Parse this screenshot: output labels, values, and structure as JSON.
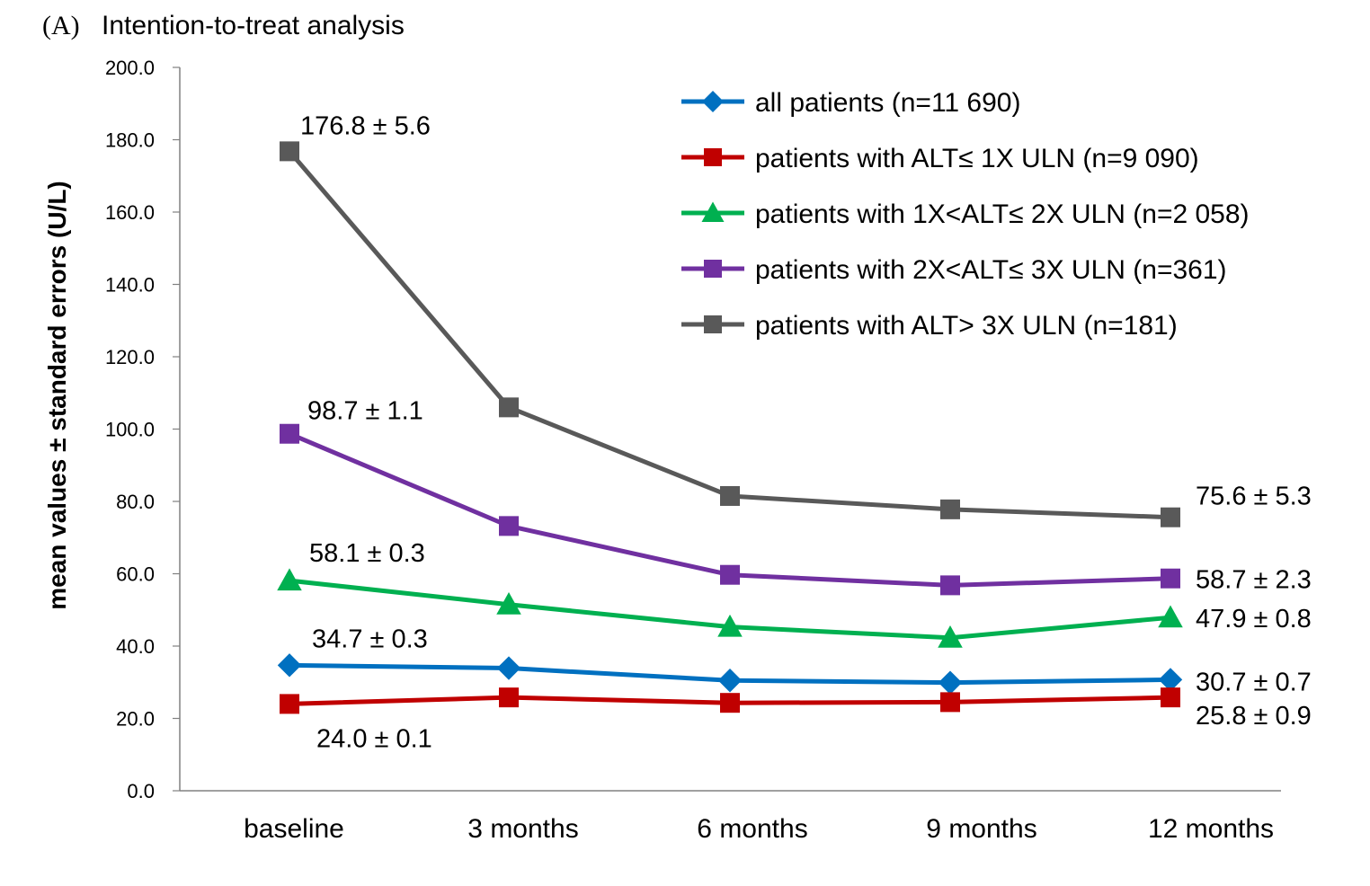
{
  "panel_label": "(A)",
  "chart_data": {
    "type": "line",
    "title": "Intention-to-treat analysis",
    "xlabel": "",
    "ylabel": "mean values ± standard errors (U/L)",
    "categories": [
      "baseline",
      "3 months",
      "6 months",
      "9 months",
      "12 months"
    ],
    "ylim": [
      0,
      200
    ],
    "yticks": [
      "0.0",
      "20.0",
      "40.0",
      "60.0",
      "80.0",
      "100.0",
      "120.0",
      "140.0",
      "160.0",
      "180.0",
      "200.0"
    ],
    "grid": false,
    "legend_position": "top-right",
    "series": [
      {
        "name": "all patients (n=11 690)",
        "color": "#0070C0",
        "marker": "diamond",
        "values": [
          34.7,
          33.9,
          30.5,
          29.9,
          30.7
        ],
        "label_first": "34.7 ± 0.3",
        "label_last": "30.7 ± 0.7"
      },
      {
        "name": "patients with ALT≤ 1X ULN (n=9 090)",
        "color": "#C00000",
        "marker": "square",
        "values": [
          24.0,
          25.8,
          24.3,
          24.5,
          25.8
        ],
        "label_first": "24.0 ± 0.1",
        "label_last": "25.8 ± 0.9"
      },
      {
        "name": "patients with 1X<ALT≤ 2X ULN (n=2 058)",
        "color": "#00B050",
        "marker": "triangle",
        "values": [
          58.1,
          51.5,
          45.3,
          42.3,
          47.9
        ],
        "label_first": "58.1 ± 0.3",
        "label_last": "47.9 ± 0.8"
      },
      {
        "name": "patients with 2X<ALT≤ 3X ULN (n=361)",
        "color": "#7030A0",
        "marker": "square",
        "values": [
          98.7,
          73.2,
          59.7,
          56.8,
          58.7
        ],
        "label_first": "98.7 ± 1.1",
        "label_last": "58.7 ± 2.3"
      },
      {
        "name": "patients with ALT> 3X ULN (n=181)",
        "color": "#595959",
        "marker": "square",
        "values": [
          176.8,
          106.0,
          81.5,
          77.8,
          75.6
        ],
        "label_first": "176.8 ± 5.6",
        "label_last": "75.6 ± 5.3"
      }
    ]
  }
}
